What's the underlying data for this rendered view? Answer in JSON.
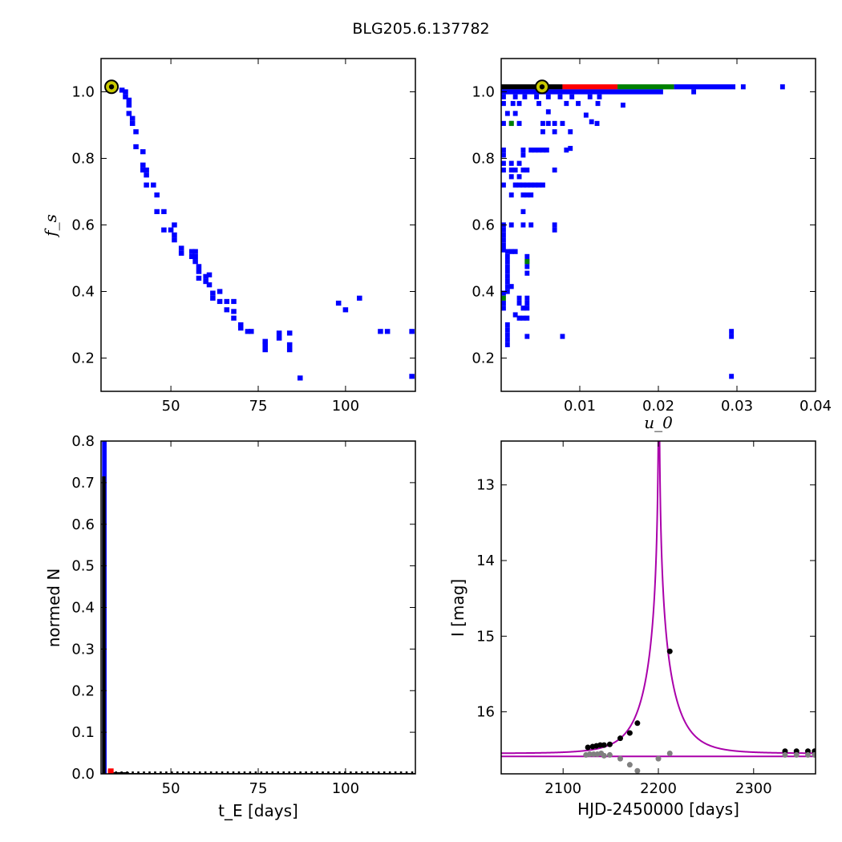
{
  "title": "BLG205.6.137782",
  "chart_data": [
    {
      "id": "fs-vs-tE",
      "type": "heatmap",
      "xlabel": "",
      "ylabel": "f_s",
      "xlim": [
        30,
        120
      ],
      "ylim": [
        0.1,
        1.1
      ],
      "xticks": [
        "50",
        "75",
        "100"
      ],
      "yticks": [
        "0.2",
        "0.4",
        "0.6",
        "0.8",
        "1.0"
      ],
      "cell": [
        1.5,
        0.015
      ],
      "color": "#0000ff",
      "best_fit": {
        "x": 33,
        "y": 1.015
      },
      "cells": [
        [
          36,
          1.005
        ],
        [
          37,
          1.0
        ],
        [
          37,
          0.985
        ],
        [
          38,
          0.975
        ],
        [
          38,
          0.96
        ],
        [
          38,
          0.935
        ],
        [
          39,
          0.92
        ],
        [
          39,
          0.905
        ],
        [
          40,
          0.88
        ],
        [
          40,
          0.835
        ],
        [
          42,
          0.82
        ],
        [
          42,
          0.78
        ],
        [
          42,
          0.765
        ],
        [
          43,
          0.765
        ],
        [
          43,
          0.75
        ],
        [
          43,
          0.72
        ],
        [
          45,
          0.72
        ],
        [
          46,
          0.69
        ],
        [
          46,
          0.64
        ],
        [
          48,
          0.64
        ],
        [
          48,
          0.585
        ],
        [
          50,
          0.585
        ],
        [
          51,
          0.6
        ],
        [
          51,
          0.57
        ],
        [
          51,
          0.555
        ],
        [
          53,
          0.53
        ],
        [
          53,
          0.515
        ],
        [
          56,
          0.52
        ],
        [
          56,
          0.505
        ],
        [
          57,
          0.52
        ],
        [
          57,
          0.505
        ],
        [
          57,
          0.49
        ],
        [
          58,
          0.475
        ],
        [
          58,
          0.46
        ],
        [
          58,
          0.44
        ],
        [
          60,
          0.445
        ],
        [
          60,
          0.43
        ],
        [
          61,
          0.45
        ],
        [
          61,
          0.42
        ],
        [
          62,
          0.395
        ],
        [
          62,
          0.38
        ],
        [
          64,
          0.4
        ],
        [
          64,
          0.37
        ],
        [
          66,
          0.37
        ],
        [
          66,
          0.345
        ],
        [
          68,
          0.37
        ],
        [
          68,
          0.34
        ],
        [
          68,
          0.32
        ],
        [
          70,
          0.3
        ],
        [
          70,
          0.29
        ],
        [
          72,
          0.28
        ],
        [
          73,
          0.28
        ],
        [
          77,
          0.25
        ],
        [
          77,
          0.24
        ],
        [
          77,
          0.225
        ],
        [
          81,
          0.275
        ],
        [
          81,
          0.26
        ],
        [
          84,
          0.275
        ],
        [
          84,
          0.24
        ],
        [
          84,
          0.225
        ],
        [
          87,
          0.14
        ],
        [
          98,
          0.365
        ],
        [
          100,
          0.345
        ],
        [
          104,
          0.38
        ],
        [
          110,
          0.28
        ],
        [
          112,
          0.28
        ],
        [
          119,
          0.28
        ],
        [
          119,
          0.145
        ]
      ]
    },
    {
      "id": "fs-vs-u0",
      "type": "heatmap",
      "xlabel": "u_0",
      "ylabel": "",
      "xlim": [
        0,
        0.04
      ],
      "ylim": [
        0.1,
        1.1
      ],
      "xticks": [
        "0.01",
        "0.02",
        "0.03",
        "0.04"
      ],
      "yticks": [
        "0.2",
        "0.4",
        "0.6",
        "0.8",
        "1.0"
      ],
      "best_fit": {
        "x": 0.0052,
        "y": 1.015
      },
      "bands": [
        {
          "x0": 0.0,
          "x1": 0.0078,
          "y": 1.015,
          "color": "#000000"
        },
        {
          "x0": 0.0078,
          "x1": 0.0148,
          "y": 1.015,
          "color": "#ff0000"
        },
        {
          "x0": 0.0148,
          "x1": 0.022,
          "y": 1.015,
          "color": "#008000"
        },
        {
          "x0": 0.022,
          "x1": 0.0298,
          "y": 1.015,
          "color": "#0000ff"
        },
        {
          "x0": 0.0,
          "x1": 0.0206,
          "y": 1.0,
          "color": "#0000ff"
        }
      ],
      "cells_cell": [
        0.0006,
        0.015
      ],
      "cells_color": "#0000ff",
      "cells": [
        [
          0.0308,
          1.015
        ],
        [
          0.0358,
          1.015
        ],
        [
          0.0245,
          1.0
        ],
        [
          0.0003,
          0.985
        ],
        [
          0.0018,
          0.985
        ],
        [
          0.003,
          0.985
        ],
        [
          0.0045,
          0.985
        ],
        [
          0.006,
          0.985
        ],
        [
          0.0075,
          0.985
        ],
        [
          0.009,
          0.985
        ],
        [
          0.0113,
          0.985
        ],
        [
          0.0125,
          0.985
        ],
        [
          0.0003,
          0.965
        ],
        [
          0.0015,
          0.965
        ],
        [
          0.0023,
          0.965
        ],
        [
          0.0048,
          0.965
        ],
        [
          0.0083,
          0.965
        ],
        [
          0.0098,
          0.965
        ],
        [
          0.0123,
          0.965
        ],
        [
          0.0155,
          0.96
        ],
        [
          0.0008,
          0.935
        ],
        [
          0.0018,
          0.935
        ],
        [
          0.006,
          0.94
        ],
        [
          0.0108,
          0.93
        ],
        [
          0.0003,
          0.905
        ],
        [
          0.0013,
          0.905
        ],
        [
          0.0023,
          0.905
        ],
        [
          0.0053,
          0.905
        ],
        [
          0.006,
          0.905
        ],
        [
          0.0068,
          0.905
        ],
        [
          0.0078,
          0.905
        ],
        [
          0.0115,
          0.91
        ],
        [
          0.0122,
          0.905
        ],
        [
          0.0053,
          0.88
        ],
        [
          0.0068,
          0.88
        ],
        [
          0.0088,
          0.88
        ],
        [
          0.0003,
          0.825
        ],
        [
          0.0028,
          0.825
        ],
        [
          0.0038,
          0.825
        ],
        [
          0.0043,
          0.825
        ],
        [
          0.0048,
          0.825
        ],
        [
          0.0053,
          0.825
        ],
        [
          0.0058,
          0.825
        ],
        [
          0.0088,
          0.83
        ],
        [
          0.0003,
          0.81
        ],
        [
          0.0028,
          0.81
        ],
        [
          0.0083,
          0.825
        ],
        [
          0.0003,
          0.785
        ],
        [
          0.0013,
          0.785
        ],
        [
          0.0023,
          0.785
        ],
        [
          0.0003,
          0.765
        ],
        [
          0.0013,
          0.765
        ],
        [
          0.0018,
          0.765
        ],
        [
          0.0028,
          0.765
        ],
        [
          0.0033,
          0.765
        ],
        [
          0.0068,
          0.765
        ],
        [
          0.0013,
          0.745
        ],
        [
          0.0023,
          0.745
        ],
        [
          0.0003,
          0.72
        ],
        [
          0.0018,
          0.72
        ],
        [
          0.0023,
          0.72
        ],
        [
          0.0028,
          0.72
        ],
        [
          0.0033,
          0.72
        ],
        [
          0.0038,
          0.72
        ],
        [
          0.0043,
          0.72
        ],
        [
          0.0048,
          0.72
        ],
        [
          0.0053,
          0.72
        ],
        [
          0.0013,
          0.69
        ],
        [
          0.0028,
          0.69
        ],
        [
          0.0033,
          0.69
        ],
        [
          0.0038,
          0.69
        ],
        [
          0.0028,
          0.64
        ],
        [
          0.0003,
          0.6
        ],
        [
          0.0013,
          0.6
        ],
        [
          0.0028,
          0.6
        ],
        [
          0.0038,
          0.6
        ],
        [
          0.0068,
          0.6
        ],
        [
          0.0068,
          0.585
        ],
        [
          0.0003,
          0.585
        ],
        [
          0.0003,
          0.57
        ],
        [
          0.0003,
          0.555
        ],
        [
          0.0003,
          0.54
        ],
        [
          0.0003,
          0.525
        ],
        [
          0.0008,
          0.52
        ],
        [
          0.0013,
          0.52
        ],
        [
          0.0018,
          0.52
        ],
        [
          0.0008,
          0.505
        ],
        [
          0.0033,
          0.505
        ],
        [
          0.0008,
          0.49
        ],
        [
          0.0033,
          0.49
        ],
        [
          0.0008,
          0.475
        ],
        [
          0.0033,
          0.475
        ],
        [
          0.0008,
          0.46
        ],
        [
          0.0033,
          0.455
        ],
        [
          0.0008,
          0.445
        ],
        [
          0.0008,
          0.43
        ],
        [
          0.0008,
          0.415
        ],
        [
          0.0013,
          0.415
        ],
        [
          0.0003,
          0.395
        ],
        [
          0.0008,
          0.4
        ],
        [
          0.0023,
          0.38
        ],
        [
          0.0033,
          0.38
        ],
        [
          0.0003,
          0.365
        ],
        [
          0.0023,
          0.365
        ],
        [
          0.0033,
          0.365
        ],
        [
          0.0003,
          0.35
        ],
        [
          0.0028,
          0.35
        ],
        [
          0.0033,
          0.35
        ],
        [
          0.0018,
          0.33
        ],
        [
          0.0023,
          0.32
        ],
        [
          0.0028,
          0.32
        ],
        [
          0.0033,
          0.32
        ],
        [
          0.0008,
          0.3
        ],
        [
          0.0008,
          0.285
        ],
        [
          0.0008,
          0.27
        ],
        [
          0.0008,
          0.255
        ],
        [
          0.0008,
          0.24
        ],
        [
          0.0033,
          0.265
        ],
        [
          0.0078,
          0.265
        ],
        [
          0.0293,
          0.28
        ],
        [
          0.0293,
          0.265
        ],
        [
          0.0293,
          0.145
        ]
      ],
      "green_cells": [
        [
          0.0013,
          0.905
        ],
        [
          0.0033,
          0.49
        ],
        [
          0.0003,
          0.38
        ]
      ]
    },
    {
      "id": "tE-histogram",
      "type": "bar",
      "xlabel": "t_E [days]",
      "ylabel": "normed N",
      "xlim": [
        30,
        120
      ],
      "ylim": [
        0,
        0.8
      ],
      "xticks": [
        "50",
        "75",
        "100"
      ],
      "yticks": [
        "0.0",
        "0.1",
        "0.2",
        "0.3",
        "0.4",
        "0.5",
        "0.6",
        "0.7",
        "0.8"
      ],
      "series": [
        {
          "color": "#0000ff",
          "bins": [
            [
              30.3,
              31.6,
              0.8
            ]
          ]
        },
        {
          "color": "#000000",
          "bins": [
            [
              30.3,
              31.3,
              0.715
            ],
            [
              32,
              33.5,
              0.01
            ],
            [
              33.5,
              38,
              0.004
            ],
            [
              38,
              110,
              0.002
            ],
            [
              110,
              120,
              0.002
            ]
          ]
        },
        {
          "color": "#ff0000",
          "bins": [
            [
              32,
              33.6,
              0.013
            ]
          ]
        }
      ]
    },
    {
      "id": "light-curve",
      "type": "scatter",
      "xlabel": "HJD-2450000 [days]",
      "ylabel": "I [mag]",
      "xlim": [
        2035,
        2365
      ],
      "ylim": [
        16.82,
        12.42
      ],
      "xticks": [
        "2100",
        "2200",
        "2300"
      ],
      "yticks": [
        "13",
        "14",
        "15",
        "16"
      ],
      "model": {
        "t0": 2200.6,
        "tE": 32,
        "u0": 0.0052,
        "baseline": 16.55,
        "blend_line": 16.59,
        "color": "#aa00aa"
      },
      "series": [
        {
          "color": "#000000",
          "points": [
            [
              2126,
              16.47
            ],
            [
              2131,
              16.46
            ],
            [
              2135,
              16.45
            ],
            [
              2139,
              16.44
            ],
            [
              2143,
              16.44
            ],
            [
              2149,
              16.43
            ],
            [
              2160,
              16.35
            ],
            [
              2170,
              16.28
            ],
            [
              2178,
              16.15
            ],
            [
              2212,
              15.2
            ],
            [
              2333,
              16.52
            ],
            [
              2345,
              16.52
            ],
            [
              2357,
              16.52
            ],
            [
              2364,
              16.52
            ]
          ]
        },
        {
          "color": "#808080",
          "points": [
            [
              2124,
              16.57
            ],
            [
              2128,
              16.56
            ],
            [
              2132,
              16.56
            ],
            [
              2136,
              16.56
            ],
            [
              2140,
              16.55
            ],
            [
              2143,
              16.58
            ],
            [
              2149,
              16.57
            ],
            [
              2160,
              16.62
            ],
            [
              2170,
              16.7
            ],
            [
              2178,
              16.78
            ],
            [
              2200,
              16.62
            ],
            [
              2212,
              16.55
            ],
            [
              2333,
              16.57
            ],
            [
              2345,
              16.57
            ],
            [
              2357,
              16.57
            ],
            [
              2364,
              16.57
            ]
          ]
        }
      ]
    }
  ]
}
